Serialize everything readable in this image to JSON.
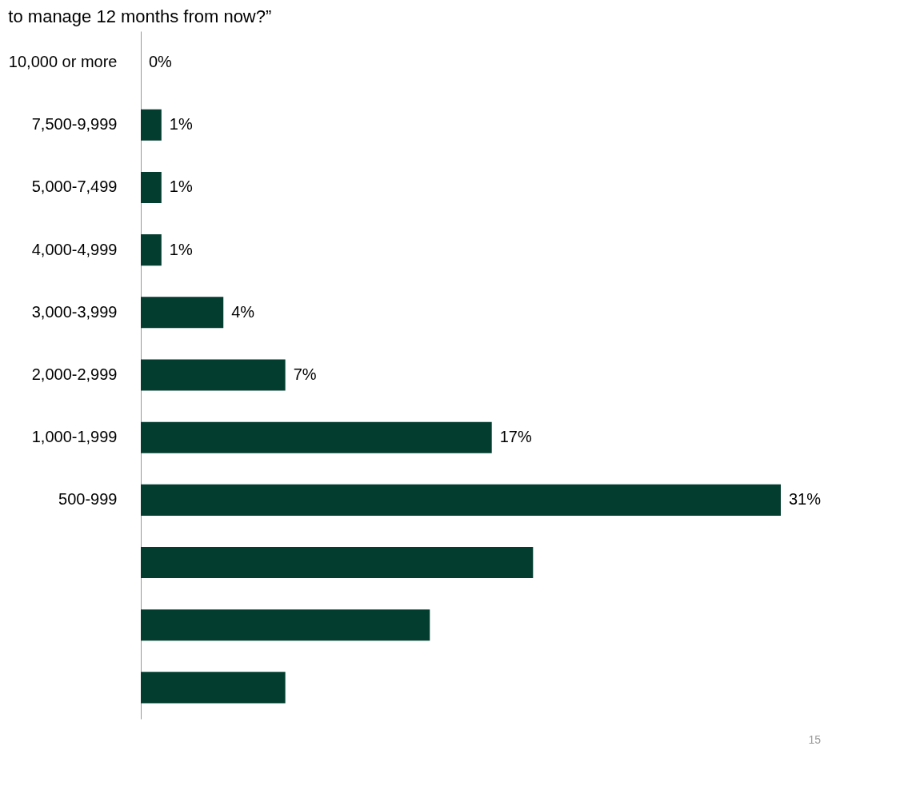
{
  "chart_data": {
    "type": "bar",
    "orientation": "horizontal",
    "title": "to manage 12 months from now?”",
    "categories": [
      "10,000 or more",
      "7,500-9,999",
      "5,000-7,499",
      "4,000-4,999",
      "3,000-3,999",
      "2,000-2,999",
      "1,000-1,999",
      "500-999",
      null,
      null,
      null
    ],
    "values": [
      0,
      1,
      1,
      1,
      4,
      7,
      17,
      31,
      19,
      14,
      7
    ],
    "value_labels": [
      "0%",
      "1%",
      "1%",
      "1%",
      "4%",
      "7%",
      "17%",
      "31%",
      null,
      null,
      null
    ],
    "color": "#033d2f",
    "annotations": [
      "15"
    ]
  }
}
